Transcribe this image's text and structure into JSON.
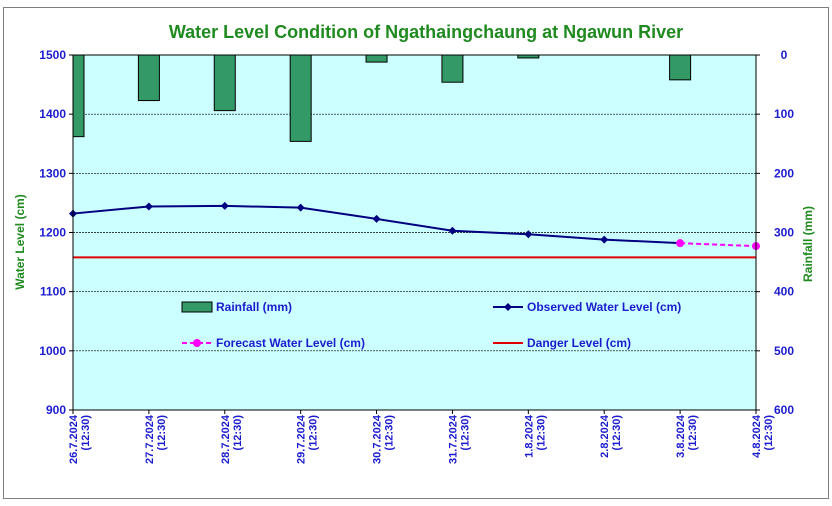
{
  "chart_data": {
    "type": "line",
    "title": "Water Level Condition of  Ngathaingchaung at Ngawun River",
    "ylabel": "Water Level (cm)",
    "y2label": "Rainfall (mm)",
    "ylim": [
      900,
      1500
    ],
    "y2lim": [
      0,
      600
    ],
    "y2_inverted": true,
    "yticks": [
      "900",
      "1000",
      "1100",
      "1200",
      "1300",
      "1400",
      "1500"
    ],
    "y2ticks": [
      "0",
      "100",
      "200",
      "300",
      "400",
      "500",
      "600"
    ],
    "grid": true,
    "legend_placement": "inside-bottom",
    "categories": [
      [
        "26.7.2024",
        "(12:30)"
      ],
      [
        "27.7.2024",
        "(12:30)"
      ],
      [
        "28.7.2024",
        "(12:30)"
      ],
      [
        "29.7.2024",
        "(12:30)"
      ],
      [
        "30.7.2024",
        "(12:30)"
      ],
      [
        "31.7.2024",
        "(12:30)"
      ],
      [
        "1.8.2024",
        "(12:30)"
      ],
      [
        "2.8.2024",
        "(12:30)"
      ],
      [
        "3.8.2024",
        "(12:30)"
      ],
      [
        "4.8.2024",
        "(12:30)"
      ]
    ],
    "series": [
      {
        "name": "Rainfall (mm)",
        "kind": "bar",
        "axis": "y2",
        "color": "#339966",
        "values": [
          138,
          77,
          94,
          146,
          12,
          46,
          5,
          null,
          42,
          null
        ]
      },
      {
        "name": "Observed Water Level (cm)",
        "kind": "line",
        "axis": "y",
        "color": "#000080",
        "values": [
          1232,
          1244,
          1245,
          1242,
          1223,
          1203,
          1197,
          1188,
          1182,
          null
        ]
      },
      {
        "name": "Forecast Water Level (cm)",
        "kind": "line-dashed",
        "axis": "y",
        "color": "#ff00ff",
        "values": [
          null,
          null,
          null,
          null,
          null,
          null,
          null,
          null,
          1182,
          1177
        ]
      },
      {
        "name": "Danger Level (cm)",
        "kind": "hline",
        "axis": "y",
        "color": "#e00000",
        "value": 1158
      }
    ],
    "colors": {
      "plot_bg": "#ccffff",
      "title": "#1f8a1f",
      "ticks": "#1c1ccf"
    }
  }
}
